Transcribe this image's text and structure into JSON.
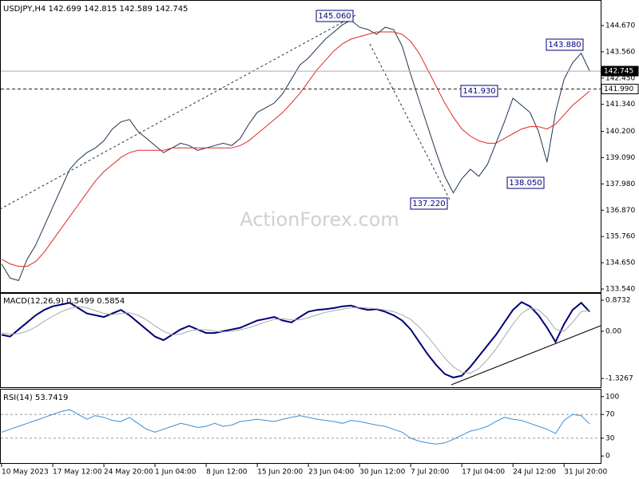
{
  "chart_data": [
    {
      "type": "line",
      "title": "USDJPY,H4  142.699 142.815 142.589 142.745",
      "watermark": "ActionForex.com",
      "categories": [
        "10 May 2023",
        null,
        null,
        null,
        null,
        null,
        "17 May 12:00",
        null,
        null,
        null,
        null,
        null,
        "24 May 20:00",
        null,
        null,
        null,
        null,
        null,
        "1 Jun 04:00",
        null,
        null,
        null,
        null,
        null,
        "8 Jun 12:00",
        null,
        null,
        null,
        null,
        null,
        "15 Jun 20:00",
        null,
        null,
        null,
        null,
        null,
        "23 Jun 04:00",
        null,
        null,
        null,
        null,
        null,
        "30 Jun 12:00",
        null,
        null,
        null,
        null,
        null,
        "7 Jul 20:00",
        null,
        null,
        null,
        null,
        null,
        "17 Jul 04:00",
        null,
        null,
        null,
        null,
        null,
        "24 Jul 12:00",
        null,
        null,
        null,
        null,
        null,
        "31 Jul 20:00",
        null,
        null,
        null
      ],
      "series": [
        {
          "color": "#1c3550",
          "values": [
            134.6,
            134.0,
            133.9,
            134.8,
            135.4,
            136.2,
            137.0,
            137.8,
            138.6,
            139.0,
            139.3,
            139.5,
            139.8,
            140.3,
            140.6,
            140.7,
            140.2,
            139.9,
            139.6,
            139.3,
            139.5,
            139.7,
            139.6,
            139.4,
            139.5,
            139.6,
            139.7,
            139.6,
            139.9,
            140.5,
            141.0,
            141.2,
            141.4,
            141.8,
            142.4,
            143.0,
            143.3,
            143.7,
            144.1,
            144.4,
            144.7,
            144.9,
            144.6,
            144.5,
            144.3,
            144.6,
            144.5,
            143.8,
            142.6,
            141.5,
            140.4,
            139.3,
            138.3,
            137.6,
            138.2,
            138.6,
            138.3,
            138.8,
            139.7,
            140.6,
            141.6,
            141.3,
            141.0,
            140.2,
            138.9,
            141.0,
            142.4,
            143.1,
            143.5,
            142.745
          ]
        },
        {
          "color": "#e02828",
          "values": [
            134.8,
            134.6,
            134.5,
            134.5,
            134.7,
            135.1,
            135.6,
            136.1,
            136.6,
            137.1,
            137.6,
            138.1,
            138.5,
            138.8,
            139.1,
            139.3,
            139.4,
            139.4,
            139.4,
            139.4,
            139.5,
            139.5,
            139.5,
            139.5,
            139.5,
            139.5,
            139.5,
            139.5,
            139.6,
            139.8,
            140.1,
            140.4,
            140.7,
            141.0,
            141.4,
            141.8,
            142.3,
            142.8,
            143.2,
            143.6,
            143.9,
            144.1,
            144.2,
            144.3,
            144.4,
            144.4,
            144.4,
            144.3,
            144.0,
            143.5,
            142.8,
            142.1,
            141.4,
            140.8,
            140.3,
            140.0,
            139.8,
            139.7,
            139.7,
            139.9,
            140.1,
            140.3,
            140.4,
            140.4,
            140.3,
            140.5,
            140.9,
            141.3,
            141.6,
            141.9
          ]
        }
      ],
      "ylim": [
        133.44,
        145.58
      ],
      "yticks": [
        {
          "value": 144.67,
          "label": "144.670"
        },
        {
          "value": 143.56,
          "label": "143.560"
        },
        {
          "value": 142.45,
          "label": "142.450"
        },
        {
          "value": 141.34,
          "label": "141.340"
        },
        {
          "value": 140.2,
          "label": "140.200"
        },
        {
          "value": 139.09,
          "label": "139.090"
        },
        {
          "value": 137.98,
          "label": "137.980"
        },
        {
          "value": 136.87,
          "label": "136.870"
        },
        {
          "value": 135.76,
          "label": "135.760"
        },
        {
          "value": 134.65,
          "label": "134.650"
        },
        {
          "value": 133.54,
          "label": "133.540"
        }
      ],
      "levels": [
        {
          "value": 142.745,
          "label": "142.745",
          "style": "solid"
        },
        {
          "value": 141.99,
          "label": "141.990",
          "style": "dashed"
        }
      ],
      "annotations": [
        "145.060",
        "143.880",
        "141.930",
        "138.050",
        "137.220"
      ]
    },
    {
      "type": "line",
      "title": "MACD(12,26,9) 0.5499 0.5854",
      "series": [
        {
          "color": "#00007a",
          "values": [
            -0.1,
            -0.15,
            0.05,
            0.25,
            0.45,
            0.6,
            0.7,
            0.75,
            0.8,
            0.65,
            0.5,
            0.45,
            0.4,
            0.5,
            0.6,
            0.45,
            0.25,
            0.05,
            -0.15,
            -0.25,
            -0.1,
            0.05,
            0.15,
            0.05,
            -0.05,
            -0.05,
            0,
            0.05,
            0.1,
            0.2,
            0.3,
            0.35,
            0.4,
            0.3,
            0.25,
            0.4,
            0.55,
            0.6,
            0.62,
            0.65,
            0.7,
            0.72,
            0.65,
            0.6,
            0.62,
            0.55,
            0.45,
            0.3,
            0.05,
            -0.3,
            -0.65,
            -0.95,
            -1.2,
            -1.3,
            -1.25,
            -1.0,
            -0.7,
            -0.4,
            -0.1,
            0.25,
            0.6,
            0.82,
            0.7,
            0.45,
            0.1,
            -0.3,
            0.2,
            0.6,
            0.8,
            0.5499
          ]
        },
        {
          "color": "#a8a8a8",
          "values": [
            -0.05,
            -0.08,
            -0.07,
            0.0,
            0.12,
            0.28,
            0.42,
            0.55,
            0.64,
            0.7,
            0.66,
            0.58,
            0.5,
            0.47,
            0.5,
            0.52,
            0.45,
            0.32,
            0.15,
            0.0,
            -0.1,
            -0.08,
            0.0,
            0.05,
            0.04,
            0.0,
            -0.02,
            0.0,
            0.04,
            0.1,
            0.18,
            0.26,
            0.33,
            0.35,
            0.32,
            0.32,
            0.38,
            0.46,
            0.53,
            0.58,
            0.62,
            0.66,
            0.67,
            0.65,
            0.63,
            0.6,
            0.55,
            0.46,
            0.33,
            0.12,
            -0.15,
            -0.45,
            -0.75,
            -1.0,
            -1.15,
            -1.18,
            -1.05,
            -0.8,
            -0.5,
            -0.15,
            0.2,
            0.5,
            0.65,
            0.6,
            0.38,
            0.05,
            0.0,
            0.25,
            0.55,
            0.5854
          ]
        }
      ],
      "ylim": [
        -1.55,
        1.03
      ],
      "yticks": [
        0.8732,
        {
          "value": 0,
          "label": "0.00"
        },
        -1.3267
      ]
    },
    {
      "type": "line",
      "title": "RSI(14) 53.7419",
      "series": [
        {
          "color": "#3a8fd6",
          "values": [
            40,
            45,
            50,
            55,
            60,
            65,
            70,
            75,
            78,
            70,
            62,
            68,
            65,
            60,
            58,
            65,
            55,
            45,
            40,
            45,
            50,
            55,
            52,
            48,
            50,
            55,
            50,
            52,
            58,
            60,
            62,
            60,
            58,
            62,
            65,
            68,
            65,
            62,
            60,
            58,
            55,
            60,
            58,
            55,
            52,
            50,
            45,
            40,
            30,
            25,
            22,
            20,
            22,
            28,
            35,
            42,
            45,
            50,
            58,
            65,
            62,
            60,
            55,
            50,
            45,
            38,
            60,
            70,
            68,
            53.7419
          ]
        }
      ],
      "ylim": [
        -10.5,
        110.5
      ],
      "yticks": [
        100,
        70,
        30,
        0
      ],
      "dashed_ticks": [
        70,
        30
      ]
    }
  ]
}
